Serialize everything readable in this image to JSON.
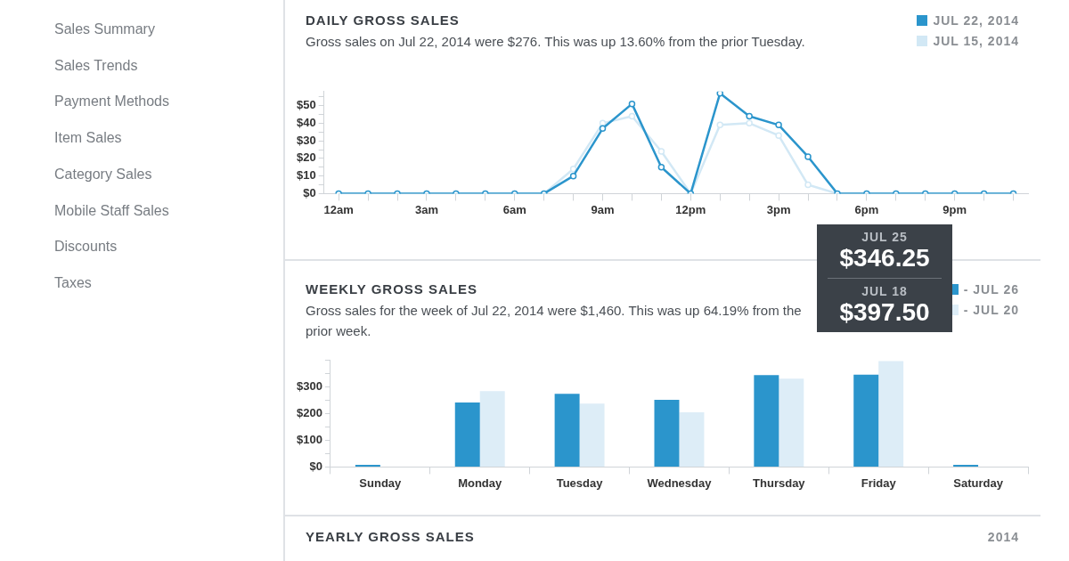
{
  "chart_data": [
    {
      "type": "other",
      "annotations": [
        "Sales Summary",
        "Sales Trends",
        "Payment Methods",
        "Item Sales",
        "Category Sales",
        "Mobile Staff Sales",
        "Discounts",
        "Taxes"
      ]
    },
    {
      "type": "line",
      "title": "DAILY GROSS SALES",
      "subtitle": "Gross sales on Jul 22, 2014 were $276. This was up 13.60% from the prior Tuesday.",
      "categories": [
        "12am",
        null,
        null,
        "3am",
        null,
        null,
        "6am",
        null,
        null,
        "9am",
        null,
        null,
        "12pm",
        null,
        null,
        "3pm",
        null,
        null,
        "6pm",
        null,
        null,
        "9pm",
        null,
        null
      ],
      "series": [
        {
          "name": "JUL 22, 2014",
          "color": "#2b95cc",
          "values": [
            0,
            0,
            0,
            0,
            0,
            0,
            0,
            0,
            10,
            37,
            51,
            15,
            0,
            57,
            44,
            39,
            21,
            0,
            0,
            0,
            0,
            0,
            0,
            0
          ]
        },
        {
          "name": "JUL 15, 2014",
          "color": "#d2e8f5",
          "values": [
            0,
            0,
            0,
            0,
            0,
            0,
            0,
            0,
            14,
            40,
            44,
            24,
            0,
            39,
            40,
            33,
            5,
            0,
            0,
            0,
            0,
            0,
            0,
            0
          ]
        }
      ],
      "ylim": [
        0,
        58
      ],
      "yticks": [
        {
          "value": 0,
          "label": "$0"
        },
        {
          "value": 5,
          "label": null
        },
        {
          "value": 10,
          "label": "$10"
        },
        {
          "value": 15,
          "label": null
        },
        {
          "value": 20,
          "label": "$20"
        },
        {
          "value": 25,
          "label": null
        },
        {
          "value": 30,
          "label": "$30"
        },
        {
          "value": 35,
          "label": null
        },
        {
          "value": 40,
          "label": "$40"
        },
        {
          "value": 45,
          "label": null
        },
        {
          "value": 50,
          "label": "$50"
        },
        {
          "value": 55,
          "label": null
        }
      ],
      "grid": false,
      "legend": "top right",
      "marker": "circle",
      "line_style": "solid"
    },
    {
      "type": "bar",
      "title": "WEEKLY GROSS SALES",
      "subtitle": "Gross sales for the week of Jul 22, 2014 were $1,460. This was up 64.19% from the prior week.",
      "categories": [
        "Sunday",
        "Monday",
        "Tuesday",
        "Wednesday",
        "Thursday",
        "Friday",
        "Saturday"
      ],
      "series": [
        {
          "name": "- JUL 26",
          "color": "#2b95cc",
          "values": [
            8,
            242,
            275,
            252,
            345,
            346.25,
            8
          ]
        },
        {
          "name": "- JUL 20",
          "color": "#ddedf7",
          "values": [
            1,
            285,
            238,
            205,
            332,
            397.5,
            1
          ]
        }
      ],
      "ylim": [
        0,
        400
      ],
      "yticks": [
        {
          "value": 0,
          "label": "$0"
        },
        {
          "value": 50,
          "label": null
        },
        {
          "value": 100,
          "label": "$100"
        },
        {
          "value": 150,
          "label": null
        },
        {
          "value": 200,
          "label": "$200"
        },
        {
          "value": 250,
          "label": null
        },
        {
          "value": 300,
          "label": "$300"
        },
        {
          "value": 350,
          "label": null
        },
        {
          "value": 400,
          "label": null
        }
      ],
      "grid": false,
      "legend": "top right",
      "annotations": [
        "JUL 25 $346.25",
        "JUL 18 $397.50"
      ]
    },
    {
      "type": "other",
      "title": "YEARLY GROSS SALES",
      "annotations": [
        "2014"
      ]
    }
  ]
}
